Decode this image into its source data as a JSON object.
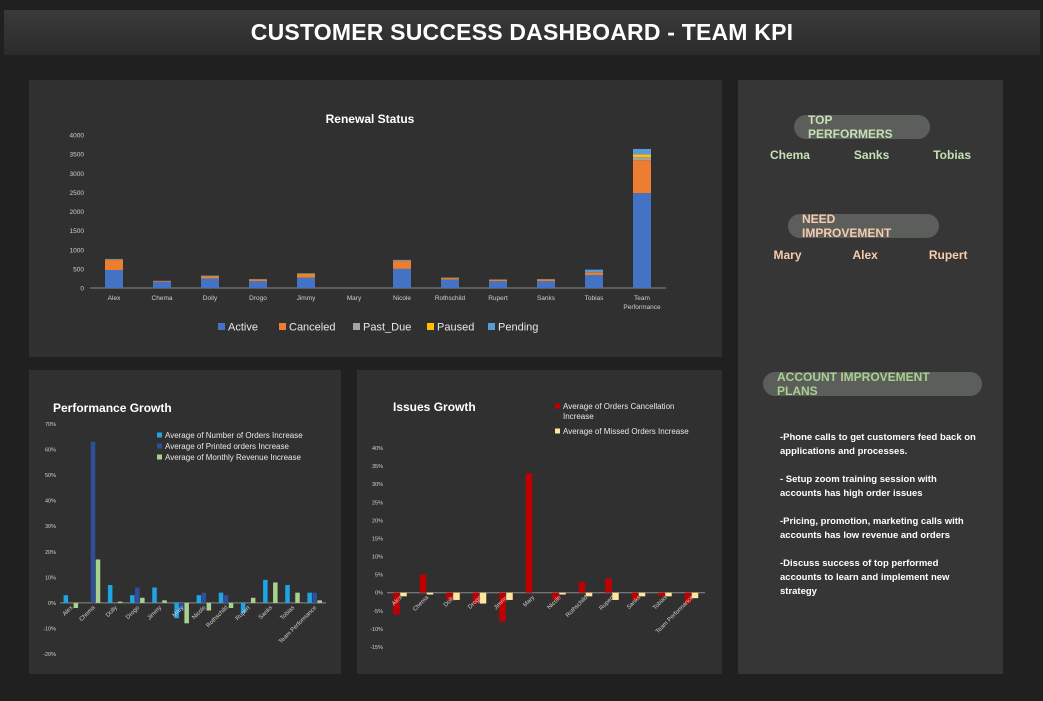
{
  "title": "CUSTOMER SUCCESS DASHBOARD - TEAM KPI",
  "renewal": {
    "title": "Renewal Status",
    "legend": [
      "Active",
      "Canceled",
      "Past_Due",
      "Paused",
      "Pending"
    ]
  },
  "performance": {
    "title": "Performance Growth",
    "legend": [
      "Average of Number of Orders Increase",
      "Average of Printed orders Increase",
      "Average of Monthly Revenue Increase"
    ]
  },
  "issues": {
    "title": "Issues Growth",
    "legend": [
      "Average of Orders Cancellation Increase",
      "Average of Missed Orders Increase"
    ]
  },
  "sidebar": {
    "top_label": "TOP PERFORMERS",
    "top_names": [
      "Chema",
      "Sanks",
      "Tobias"
    ],
    "improve_label": "NEED IMPROVEMENT",
    "improve_names": [
      "Mary",
      "Alex",
      "Rupert"
    ],
    "plans_label": "ACCOUNT IMPROVEMENT PLANS",
    "plans": [
      "-Phone calls to get customers feed back on applications and processes.",
      "- Setup zoom training session with accounts has high order issues",
      "-Pricing, promotion, marketing calls with accounts has low revenue and orders",
      "-Discuss success of top performed accounts to learn and implement new strategy"
    ]
  },
  "colors": {
    "active": "#4472c4",
    "canceled": "#ed7d31",
    "past_due": "#a5a5a5",
    "paused": "#ffc000",
    "pending": "#5b9bd5",
    "orders": "#1ea5e6",
    "printed": "#2e4f9a",
    "revenue": "#a9d18e",
    "cancel": "#c00000",
    "missed": "#ffe699",
    "top_text": "#c5e0b4",
    "improve_text": "#f8cbad",
    "plans_text": "#a9d18e"
  },
  "chart_data": [
    {
      "type": "bar",
      "title": "Renewal Status",
      "stacked": true,
      "categories": [
        "Alex",
        "Chema",
        "Dolly",
        "Drogo",
        "Jimmy",
        "Mary",
        "Nicole",
        "Rothschild",
        "Rupert",
        "Sanks",
        "Tobias",
        "Team Performance"
      ],
      "series": [
        {
          "name": "Active",
          "values": [
            470,
            160,
            250,
            180,
            270,
            0,
            500,
            220,
            180,
            180,
            340,
            2480
          ]
        },
        {
          "name": "Canceled",
          "values": [
            260,
            20,
            50,
            40,
            80,
            0,
            200,
            40,
            30,
            40,
            60,
            860
          ]
        },
        {
          "name": "Past_Due",
          "values": [
            10,
            5,
            10,
            5,
            5,
            0,
            10,
            5,
            5,
            5,
            10,
            80
          ]
        },
        {
          "name": "Paused",
          "values": [
            10,
            0,
            5,
            5,
            20,
            0,
            10,
            5,
            5,
            5,
            5,
            70
          ]
        },
        {
          "name": "Pending",
          "values": [
            10,
            5,
            10,
            5,
            10,
            0,
            15,
            5,
            5,
            5,
            65,
            145
          ]
        }
      ],
      "ylim": [
        0,
        4000
      ],
      "yticks": [
        0,
        500,
        1000,
        1500,
        2000,
        2500,
        3000,
        3500,
        4000
      ],
      "category_lines": [
        [
          "Alex"
        ],
        [
          "Chema"
        ],
        [
          "Dolly"
        ],
        [
          "Drogo"
        ],
        [
          "Jimmy"
        ],
        [
          "Mary"
        ],
        [
          "Nicole"
        ],
        [
          "Rothschild"
        ],
        [
          "Rupert"
        ],
        [
          "Sanks"
        ],
        [
          "Tobias"
        ],
        [
          "Team",
          "Performance"
        ]
      ],
      "legend_position": "bottom"
    },
    {
      "type": "bar",
      "title": "Performance Growth",
      "categories": [
        "Alex",
        "Chema",
        "Dolly",
        "Drogo",
        "Jimmy",
        "Mary",
        "Nicole",
        "Rothschild",
        "Rupert",
        "Sanks",
        "Tobias",
        "Team Performance"
      ],
      "series": [
        {
          "name": "Average of Number of Orders Increase",
          "values": [
            3,
            0,
            7,
            3,
            6,
            -6,
            3,
            4,
            -4,
            9,
            7,
            4
          ]
        },
        {
          "name": "Average of Printed orders Increase",
          "values": [
            0,
            63,
            0,
            6,
            0,
            -3,
            4,
            3,
            0,
            0,
            0,
            4
          ]
        },
        {
          "name": "Average of Monthly Revenue Increase",
          "values": [
            -2,
            17,
            0.5,
            2,
            1,
            -8,
            -3,
            -2,
            2,
            8,
            4,
            1
          ]
        }
      ],
      "ylim": [
        -20,
        70
      ],
      "yticks": [
        "-20%",
        "-10%",
        "0%",
        "10%",
        "20%",
        "30%",
        "40%",
        "50%",
        "60%",
        "70%"
      ],
      "legend_position": "top-right"
    },
    {
      "type": "bar",
      "title": "Issues Growth",
      "categories": [
        "Alex",
        "Chema",
        "Dolly",
        "Drogo",
        "Jimmy",
        "Mary",
        "Nicole",
        "Rothschild",
        "Rupert",
        "Sanks",
        "Tobias",
        "Team Performance"
      ],
      "series": [
        {
          "name": "Average of Orders Cancellation Increase",
          "values": [
            -6,
            5,
            -2,
            -3,
            -8,
            33,
            -2,
            3,
            4,
            -2,
            -1,
            -3
          ]
        },
        {
          "name": "Average of Missed Orders Increase",
          "values": [
            -1,
            -0.5,
            -2,
            -3,
            -2,
            0,
            -0.5,
            -1,
            -2,
            -1,
            -1,
            -1.5
          ]
        }
      ],
      "ylim": [
        -15,
        40
      ],
      "yticks": [
        "-15%",
        "-10%",
        "-5%",
        "0%",
        "5%",
        "10%",
        "15%",
        "20%",
        "25%",
        "30%",
        "35%",
        "40%"
      ],
      "legend_position": "top-right"
    }
  ]
}
